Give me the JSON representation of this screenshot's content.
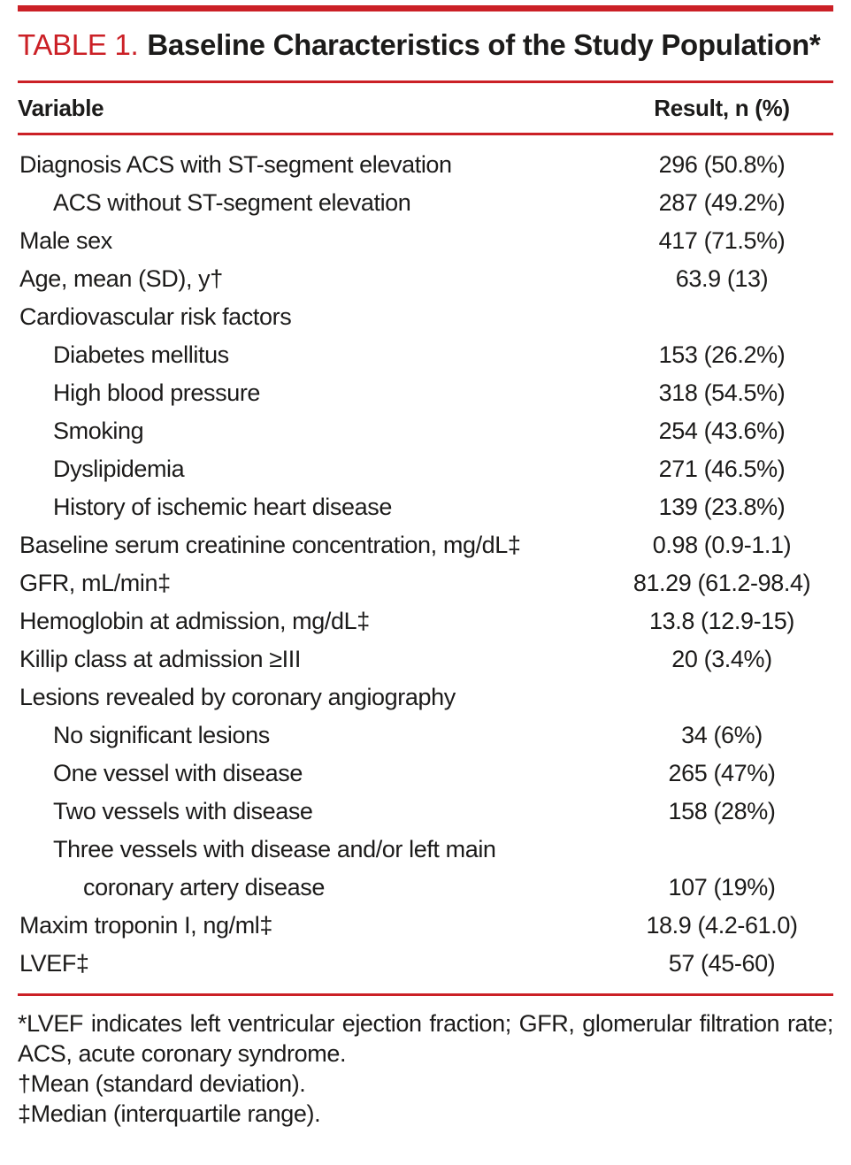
{
  "colors": {
    "accent": "#cb2026"
  },
  "table": {
    "label": "TABLE 1.",
    "title": "Baseline Characteristics of the Study Population*",
    "columns": [
      "Variable",
      "Result, n (%)"
    ],
    "rows": [
      {
        "indent": 0,
        "label": "Diagnosis ACS with ST-segment elevation",
        "value": "296 (50.8%)"
      },
      {
        "indent": 1,
        "label": "ACS without ST-segment elevation",
        "value": "287 (49.2%)"
      },
      {
        "indent": 0,
        "label": "Male sex",
        "value": "417 (71.5%)"
      },
      {
        "indent": 0,
        "label": "Age, mean (SD), y†",
        "value": "63.9 (13)"
      },
      {
        "indent": 0,
        "label": "Cardiovascular risk factors",
        "value": ""
      },
      {
        "indent": 1,
        "label": "Diabetes mellitus",
        "value": "153 (26.2%)"
      },
      {
        "indent": 1,
        "label": "High blood pressure",
        "value": "318 (54.5%)"
      },
      {
        "indent": 1,
        "label": "Smoking",
        "value": "254 (43.6%)"
      },
      {
        "indent": 1,
        "label": "Dyslipidemia",
        "value": "271 (46.5%)"
      },
      {
        "indent": 1,
        "label": "History of ischemic heart disease",
        "value": "139 (23.8%)"
      },
      {
        "indent": 0,
        "label": "Baseline serum creatinine concentration, mg/dL‡",
        "value": "0.98 (0.9-1.1)"
      },
      {
        "indent": 0,
        "label": "GFR, mL/min‡",
        "value": "81.29 (61.2-98.4)"
      },
      {
        "indent": 0,
        "label": "Hemoglobin at admission, mg/dL‡",
        "value": "13.8 (12.9-15)"
      },
      {
        "indent": 0,
        "label": "Killip class at admission ≥III",
        "value": "20 (3.4%)"
      },
      {
        "indent": 0,
        "label": "Lesions revealed by coronary angiography",
        "value": ""
      },
      {
        "indent": 1,
        "label": "No significant lesions",
        "value": "34 (6%)"
      },
      {
        "indent": 1,
        "label": "One vessel with disease",
        "value": "265 (47%)"
      },
      {
        "indent": 1,
        "label": "Two vessels with disease",
        "value": "158 (28%)"
      },
      {
        "indent": 1,
        "label": "Three vessels with disease and/or left main",
        "value": ""
      },
      {
        "indent": 2,
        "label": "coronary artery disease",
        "value": "107 (19%)"
      },
      {
        "indent": 0,
        "label": "Maxim troponin I, ng/ml‡",
        "value": "18.9 (4.2-61.0)"
      },
      {
        "indent": 0,
        "label": "LVEF‡",
        "value": "57 (45-60)"
      }
    ],
    "footnotes": [
      "*LVEF indicates left ventricular ejection fraction; GFR, glomerular filtration rate; ACS, acute coronary syndrome.",
      "†Mean (standard deviation).",
      "‡Median (interquartile range)."
    ]
  }
}
